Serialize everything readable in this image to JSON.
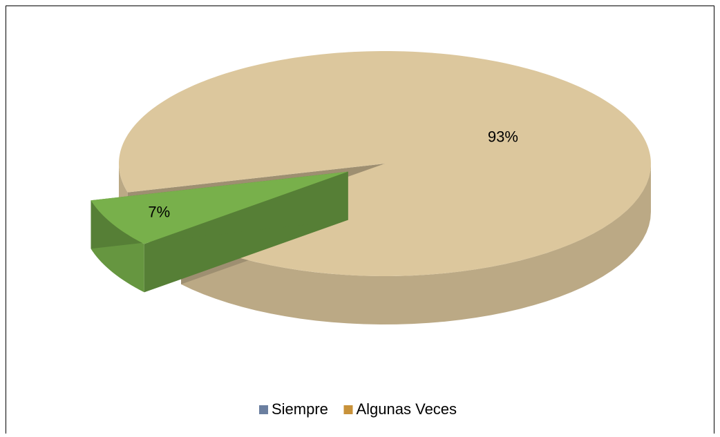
{
  "chart_data": {
    "type": "pie3d",
    "categories": [
      "Siempre",
      "Algunas Veces"
    ],
    "values": [
      7,
      93
    ],
    "value_labels": [
      "7%",
      "93%"
    ],
    "colors": [
      "#78b04b",
      "#dcc79d"
    ],
    "legend_colors": [
      "#6b7fa0",
      "#c8923a"
    ],
    "legend": "bottom"
  }
}
